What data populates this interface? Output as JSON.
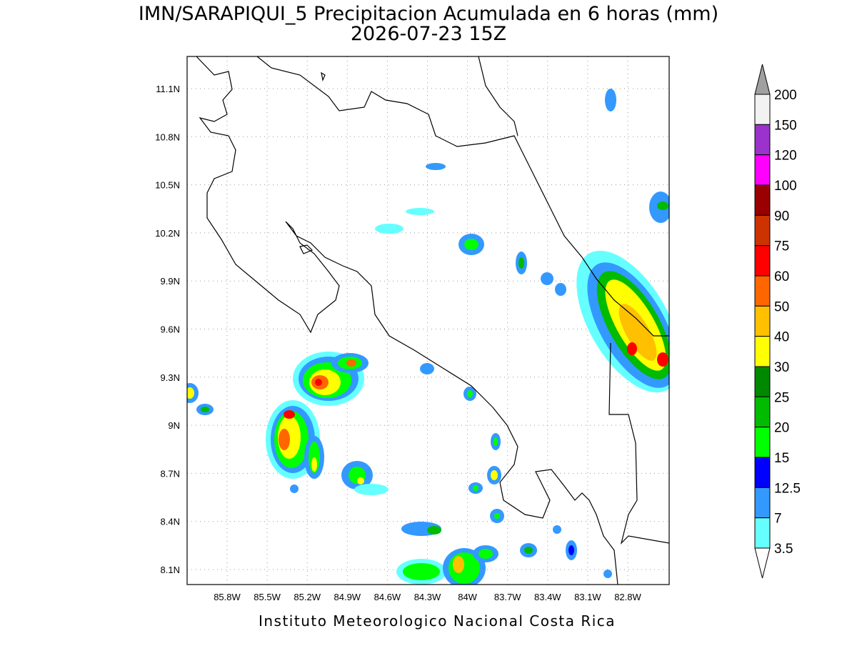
{
  "map": {
    "title": "IMN/SARAPIQUI_5 Precipitacion Acumulada en 6 horas (mm)",
    "subtitle": "2026-07-23 15Z",
    "lon_labels": [
      "85.8W",
      "85.5W",
      "85.2W",
      "84.9W",
      "84.6W",
      "84.3W",
      "84W",
      "83.7W",
      "83.4W",
      "83.1W",
      "82.8W"
    ],
    "lat_labels": [
      "11.1N",
      "10.8N",
      "10.5N",
      "10.2N",
      "9.9N",
      "9.6N",
      "9.3N",
      "9N",
      "8.7N",
      "8.4N",
      "8.1N"
    ],
    "colorbar": {
      "levels": [
        200,
        150,
        120,
        100,
        90,
        75,
        60,
        50,
        40,
        30,
        25,
        20,
        15,
        12.5,
        7,
        3.5
      ],
      "colors": [
        "#f2f2f2",
        "#9933cc",
        "#ff00ff",
        "#990000",
        "#cc3300",
        "#ff0000",
        "#ff6600",
        "#ffc000",
        "#ffff00",
        "#008800",
        "#00bb00",
        "#00ff00",
        "#0000ff",
        "#3399ff",
        "#66ffff"
      ],
      "over_color": "#a0a0a0",
      "under_color": "#ffffff"
    },
    "footer": "Instituto Meteorologico Nacional Costa Rica"
  }
}
